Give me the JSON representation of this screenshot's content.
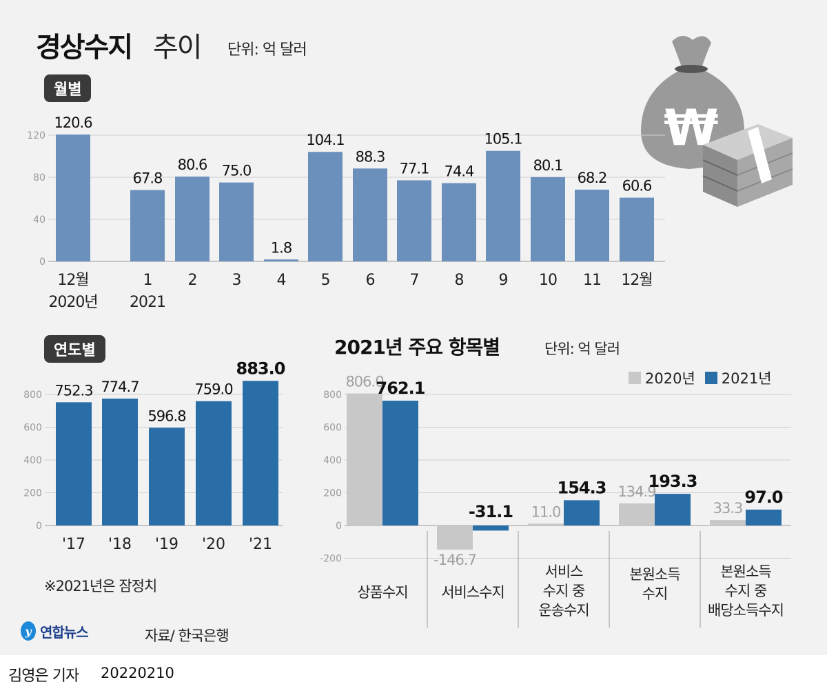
{
  "header": {
    "title_bold": "경상수지",
    "title_light": "추이",
    "unit": "단위: 억 달러"
  },
  "sections": {
    "monthly": "월별",
    "annual": "연도별",
    "items_title": "2021년 주요 항목별",
    "items_unit": "단위: 억 달러"
  },
  "note": "※2021년은 잠정치",
  "source": "자료/ 한국은행",
  "logo": "연합뉴스",
  "byline": {
    "reporter": "김영은 기자",
    "date": "20220210"
  },
  "colors": {
    "monthly_bar": "#6b90bb",
    "annual_bar": "#2a6ea8",
    "series_2020": "#c8c8c8",
    "series_2021": "#2a6ea8",
    "background": "#f2f2f2"
  },
  "illustration": "money-bag-with-won-sign-and-cash-stack",
  "chart_data": [
    {
      "type": "bar",
      "title": "월별",
      "categories": [
        [
          "12월",
          "2020년"
        ],
        [
          "1",
          "2021"
        ],
        [
          "2"
        ],
        [
          "3"
        ],
        [
          "4"
        ],
        [
          "5"
        ],
        [
          "6"
        ],
        [
          "7"
        ],
        [
          "8"
        ],
        [
          "9"
        ],
        [
          "10"
        ],
        [
          "11"
        ],
        [
          "12월"
        ]
      ],
      "values": [
        120.6,
        67.8,
        80.6,
        75.0,
        1.8,
        104.1,
        88.3,
        77.1,
        74.4,
        105.1,
        80.1,
        68.2,
        60.6
      ],
      "labels": [
        "120.6",
        "67.8",
        "80.6",
        "75.0",
        "1.8",
        "104.1",
        "88.3",
        "77.1",
        "74.4",
        "105.1",
        "80.1",
        "68.2",
        "60.6"
      ],
      "yticks": [
        0,
        40,
        80,
        120
      ],
      "ylim": [
        0,
        120
      ],
      "grid": true
    },
    {
      "type": "bar",
      "title": "연도별",
      "categories": [
        "'17",
        "'18",
        "'19",
        "'20",
        "'21"
      ],
      "values": [
        752.3,
        774.7,
        596.8,
        759.0,
        883.0
      ],
      "labels": [
        "752.3",
        "774.7",
        "596.8",
        "759.0",
        "883.0"
      ],
      "yticks": [
        0,
        200,
        400,
        600,
        800
      ],
      "ylim": [
        0,
        800
      ],
      "grid": true
    },
    {
      "type": "bar",
      "title": "2021년 주요 항목별",
      "categories": [
        [
          "상품수지"
        ],
        [
          "서비스수지"
        ],
        [
          "서비스",
          "수지 중",
          "운송수지"
        ],
        [
          "본원소득",
          "수지"
        ],
        [
          "본원소득",
          "수지 중",
          "배당소득수지"
        ]
      ],
      "series": [
        {
          "name": "2020년",
          "values": [
            806.0,
            -146.7,
            11.0,
            134.9,
            33.3
          ],
          "labels": [
            "806.0",
            "-146.7",
            "11.0",
            "134.9",
            "33.3"
          ]
        },
        {
          "name": "2021년",
          "values": [
            762.1,
            -31.1,
            154.3,
            193.3,
            97.0
          ],
          "labels": [
            "762.1",
            "-31.1",
            "154.3",
            "193.3",
            "97.0"
          ]
        }
      ],
      "yticks": [
        -200,
        0,
        200,
        400,
        600,
        800
      ],
      "ylim": [
        -200,
        800
      ],
      "legend": "top-right",
      "grid": true
    }
  ]
}
